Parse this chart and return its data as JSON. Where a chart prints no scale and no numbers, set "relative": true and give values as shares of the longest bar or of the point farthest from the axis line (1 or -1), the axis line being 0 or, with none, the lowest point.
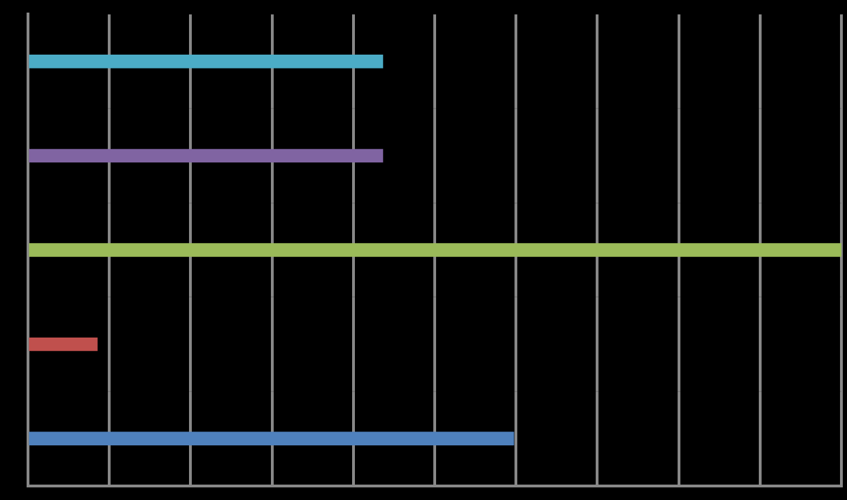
{
  "chart_data": {
    "type": "bar",
    "orientation": "horizontal",
    "relative": true,
    "grid": true,
    "categories": [
      null,
      null,
      null,
      null,
      null
    ],
    "values": [
      0.436,
      0.436,
      1,
      0.085,
      0.597
    ],
    "colors": [
      "#4bacc6",
      "#8064a2",
      "#9bbb59",
      "#c0504d",
      "#4f81bd"
    ]
  }
}
